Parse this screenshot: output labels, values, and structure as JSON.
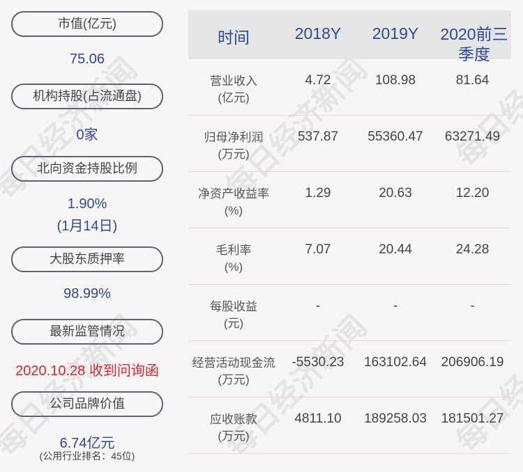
{
  "left": [
    {
      "label": "市值(亿元)",
      "value": "75.06"
    },
    {
      "label": "机构持股(占流通盘)",
      "value": "0家"
    },
    {
      "label": "北向资金持股比例",
      "value": "1.90%",
      "value2": "(1月14日)"
    },
    {
      "label": "大股东质押率",
      "value": "98.99%"
    },
    {
      "label": "最新监管情况",
      "value": "2020.10.28 收到问询函"
    },
    {
      "label": "公司品牌价值",
      "value": "6.74亿元",
      "note": "(公用行业排名：45位)"
    }
  ],
  "table": {
    "headers": [
      "时间",
      "2018Y",
      "2019Y",
      "2020前三季度"
    ],
    "rows": [
      {
        "label": "营业收入",
        "unit": "(亿元)",
        "values": [
          "4.72",
          "108.98",
          "81.64"
        ]
      },
      {
        "label": "归母净利润",
        "unit": "(万元)",
        "values": [
          "537.87",
          "55360.47",
          "63271.49"
        ]
      },
      {
        "label": "净资产收益率",
        "unit": "(%)",
        "values": [
          "1.29",
          "20.63",
          "12.20"
        ]
      },
      {
        "label": "毛利率",
        "unit": "(%)",
        "values": [
          "7.07",
          "20.44",
          "24.28"
        ]
      },
      {
        "label": "每股收益",
        "unit": "(元)",
        "values": [
          "-",
          "-",
          "-"
        ]
      },
      {
        "label": "经营活动现金流",
        "unit": "(万元)",
        "values": [
          "-5530.23",
          "163102.64",
          "206906.19"
        ]
      },
      {
        "label": "应收账款",
        "unit": "(万元)",
        "values": [
          "4811.10",
          "189258.03",
          "181501.27"
        ]
      }
    ]
  },
  "watermark": "每日经济新闻",
  "colors": {
    "accent": "#2b4a9a",
    "alert": "#e0242a"
  }
}
